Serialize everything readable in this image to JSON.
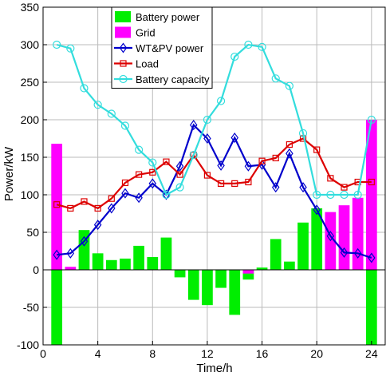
{
  "chart_data": {
    "type": "bar",
    "xlabel": "Time/h",
    "ylabel": "Power/kW",
    "xlim": [
      0,
      25
    ],
    "ylim": [
      -100,
      350
    ],
    "x_ticks": [
      0,
      4,
      8,
      12,
      16,
      20,
      24
    ],
    "y_ticks": [
      -100,
      -50,
      0,
      50,
      100,
      150,
      200,
      250,
      300,
      350
    ],
    "grid": true,
    "legend_position": "top-center",
    "hours": [
      1,
      2,
      3,
      4,
      5,
      6,
      7,
      8,
      9,
      10,
      11,
      12,
      13,
      14,
      15,
      16,
      17,
      18,
      19,
      20,
      21,
      22,
      23,
      24
    ],
    "bar_series": [
      {
        "name": "Battery power",
        "color": "#00ee00",
        "values": [
          -100,
          0,
          53,
          22,
          13,
          15,
          32,
          17,
          43,
          -10,
          -40,
          -47,
          -24,
          -60,
          -13,
          3,
          41,
          11,
          63,
          82,
          0,
          0,
          0,
          -100
        ]
      },
      {
        "name": "Grid",
        "color": "#ff00ff",
        "values": [
          168,
          4,
          0,
          0,
          0,
          0,
          0,
          0,
          0,
          0,
          0,
          0,
          0,
          0,
          -5,
          0,
          0,
          0,
          0,
          0,
          77,
          86,
          96,
          200
        ]
      }
    ],
    "line_series": [
      {
        "name": "WT&PV  power",
        "color": "#0000cc",
        "marker": "diamond",
        "values": [
          20,
          22,
          38,
          60,
          82,
          102,
          96,
          115,
          100,
          138,
          193,
          175,
          139,
          176,
          138,
          140,
          110,
          155,
          110,
          80,
          45,
          23,
          22,
          16
        ]
      },
      {
        "name": "Load",
        "color": "#dd0000",
        "marker": "square",
        "values": [
          87,
          82,
          91,
          82,
          95,
          116,
          127,
          130,
          144,
          127,
          153,
          126,
          115,
          115,
          117,
          145,
          149,
          167,
          175,
          160,
          122,
          110,
          117,
          117
        ]
      },
      {
        "name": "Battery capacity",
        "color": "#33dddd",
        "marker": "circle",
        "values": [
          300,
          295,
          242,
          220,
          208,
          192,
          160,
          143,
          100,
          110,
          153,
          200,
          225,
          284,
          300,
          297,
          255,
          245,
          182,
          100,
          100,
          100,
          100,
          200
        ]
      }
    ]
  }
}
